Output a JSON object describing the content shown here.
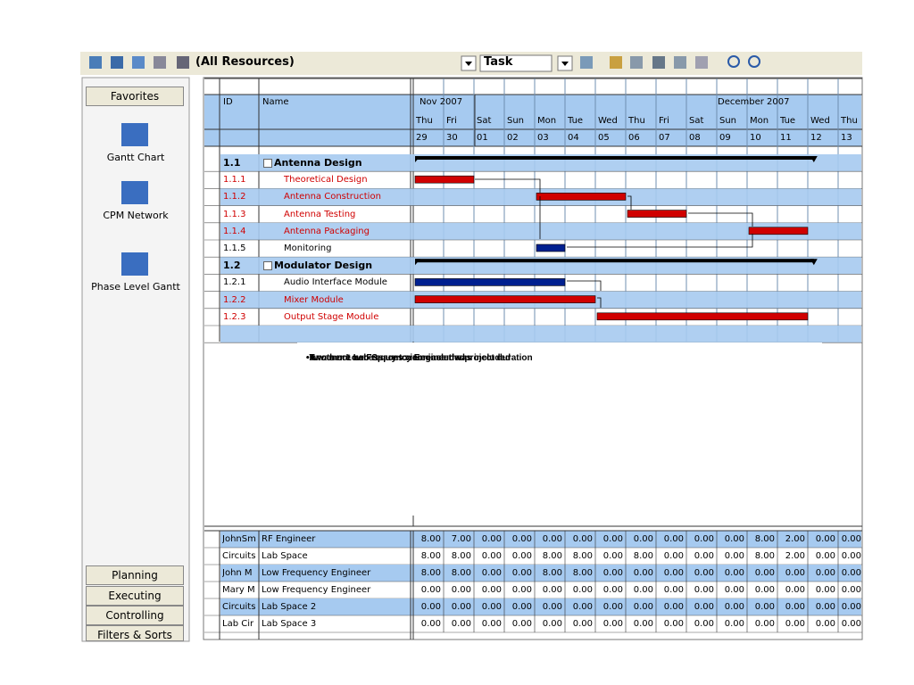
{
  "toolbar": {
    "filter": "(All Resources)",
    "view": "Task"
  },
  "sidebar": {
    "favorites": "Favorites",
    "items": [
      "Gantt Chart",
      "CPM Network",
      "Phase Level Gantt"
    ],
    "buttons": [
      "Planning",
      "Executing",
      "Controlling",
      "Filters & Sorts"
    ]
  },
  "columns": [
    "ID",
    "Name"
  ],
  "months": [
    "Nov 2007",
    "December 2007"
  ],
  "days": [
    {
      "dow": "Thu",
      "date": "29"
    },
    {
      "dow": "Fri",
      "date": "30"
    },
    {
      "dow": "Sat",
      "date": "01"
    },
    {
      "dow": "Sun",
      "date": "02"
    },
    {
      "dow": "Mon",
      "date": "03"
    },
    {
      "dow": "Tue",
      "date": "04"
    },
    {
      "dow": "Wed",
      "date": "05"
    },
    {
      "dow": "Thu",
      "date": "06"
    },
    {
      "dow": "Fri",
      "date": "07"
    },
    {
      "dow": "Sat",
      "date": "08"
    },
    {
      "dow": "Sun",
      "date": "09"
    },
    {
      "dow": "Mon",
      "date": "10"
    },
    {
      "dow": "Tue",
      "date": "11"
    },
    {
      "dow": "Wed",
      "date": "12"
    },
    {
      "dow": "Thu",
      "date": "13"
    }
  ],
  "tasks": [
    {
      "id": "1.1",
      "name": "Antenna Design"
    },
    {
      "id": "1.1.1",
      "name": "Theoretical Design"
    },
    {
      "id": "1.1.2",
      "name": "Antenna Construction"
    },
    {
      "id": "1.1.3",
      "name": "Antenna Testing"
    },
    {
      "id": "1.1.4",
      "name": "Antenna Packaging"
    },
    {
      "id": "1.1.5",
      "name": "Monitoring"
    },
    {
      "id": "1.2",
      "name": "Modulator Design"
    },
    {
      "id": "1.2.1",
      "name": "Audio Interface Module"
    },
    {
      "id": "1.2.2",
      "name": "Mixer Module"
    },
    {
      "id": "1.2.3",
      "name": "Output Stage Module"
    }
  ],
  "notes": [
    "•Another Low Frequency Engineer was included",
    "•Two more Lab Spaces were included",
    "•It was not necessary to increase the project duration"
  ],
  "resources": [
    {
      "short": "JohnSm",
      "name": "RF Engineer",
      "hours": [
        "8.00",
        "7.00",
        "0.00",
        "0.00",
        "0.00",
        "0.00",
        "0.00",
        "0.00",
        "0.00",
        "0.00",
        "0.00",
        "8.00",
        "2.00",
        "0.00",
        "0.00"
      ]
    },
    {
      "short": "Circuits",
      "name": "Lab Space",
      "hours": [
        "8.00",
        "8.00",
        "0.00",
        "0.00",
        "8.00",
        "8.00",
        "0.00",
        "8.00",
        "0.00",
        "0.00",
        "0.00",
        "8.00",
        "2.00",
        "0.00",
        "0.00"
      ]
    },
    {
      "short": "John M",
      "name": "Low Frequency Engineer",
      "hours": [
        "8.00",
        "8.00",
        "0.00",
        "0.00",
        "8.00",
        "8.00",
        "0.00",
        "0.00",
        "0.00",
        "0.00",
        "0.00",
        "0.00",
        "0.00",
        "0.00",
        "0.00"
      ]
    },
    {
      "short": "Mary M",
      "name": "Low Frequency Engineer",
      "hours": [
        "0.00",
        "0.00",
        "0.00",
        "0.00",
        "0.00",
        "0.00",
        "0.00",
        "0.00",
        "0.00",
        "0.00",
        "0.00",
        "0.00",
        "0.00",
        "0.00",
        "0.00"
      ]
    },
    {
      "short": "Circuits",
      "name": "Lab Space 2",
      "hours": [
        "0.00",
        "0.00",
        "0.00",
        "0.00",
        "0.00",
        "0.00",
        "0.00",
        "0.00",
        "0.00",
        "0.00",
        "0.00",
        "0.00",
        "0.00",
        "0.00",
        "0.00"
      ]
    },
    {
      "short": "Lab Cir",
      "name": "Lab Space 3",
      "hours": [
        "0.00",
        "0.00",
        "0.00",
        "0.00",
        "0.00",
        "0.00",
        "0.00",
        "0.00",
        "0.00",
        "0.00",
        "0.00",
        "0.00",
        "0.00",
        "0.00",
        "0.00"
      ]
    }
  ]
}
